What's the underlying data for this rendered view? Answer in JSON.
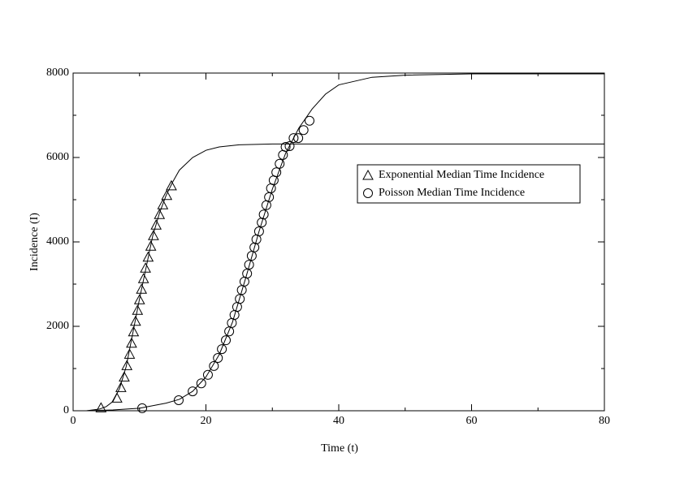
{
  "chart_data": {
    "type": "scatter",
    "xlabel": "Time (t)",
    "ylabel": "Incidence (I)",
    "xlim": [
      0,
      80
    ],
    "xticks": [
      0,
      20,
      40,
      60,
      80
    ],
    "xminorticks": [
      10,
      30,
      50,
      70
    ],
    "ylim": [
      0,
      8000
    ],
    "yticks": [
      0,
      2000,
      4000,
      6000,
      8000
    ],
    "yminorticks": [
      1000,
      3000,
      5000,
      7000
    ],
    "color": "#000000",
    "series": [
      {
        "name": "Exponential Median Time Incidence",
        "marker": "triangle",
        "x": [
          4.2,
          6.6,
          7.2,
          7.7,
          8.1,
          8.5,
          8.8,
          9.1,
          9.4,
          9.7,
          10.0,
          10.3,
          10.6,
          10.9,
          11.3,
          11.7,
          12.1,
          12.5,
          13.0,
          13.5,
          14.1,
          14.8
        ],
        "values": [
          70,
          300,
          550,
          800,
          1070,
          1340,
          1600,
          1870,
          2120,
          2380,
          2630,
          2880,
          3130,
          3380,
          3640,
          3900,
          4150,
          4400,
          4650,
          4880,
          5100,
          5330
        ],
        "curve": {
          "x": [
            2,
            4,
            5,
            6,
            7,
            8,
            9,
            10,
            11,
            12,
            13,
            14,
            15,
            16,
            18,
            20,
            22,
            25,
            30,
            80
          ],
          "values": [
            0,
            40,
            100,
            220,
            530,
            1050,
            1850,
            2650,
            3400,
            4150,
            4680,
            5100,
            5420,
            5700,
            6000,
            6170,
            6250,
            6300,
            6320,
            6320
          ]
        }
      },
      {
        "name": "Poisson Median Time Incidence",
        "marker": "circle",
        "x": [
          10.4,
          15.9,
          18.0,
          19.3,
          20.3,
          21.2,
          21.8,
          22.4,
          23.0,
          23.5,
          23.9,
          24.3,
          24.7,
          25.1,
          25.4,
          25.8,
          26.2,
          26.5,
          26.9,
          27.3,
          27.6,
          28.0,
          28.4,
          28.7,
          29.1,
          29.5,
          29.8,
          30.2,
          30.6,
          31.1,
          31.6,
          32.0,
          32.6,
          33.2,
          33.9,
          34.7,
          35.6
        ],
        "values": [
          60,
          250,
          460,
          650,
          850,
          1060,
          1250,
          1460,
          1670,
          1880,
          2080,
          2270,
          2460,
          2650,
          2860,
          3060,
          3250,
          3460,
          3670,
          3870,
          4060,
          4250,
          4460,
          4650,
          4870,
          5060,
          5270,
          5460,
          5650,
          5850,
          6060,
          6250,
          6270,
          6460,
          6460,
          6650,
          6870
        ],
        "curve": {
          "x": [
            2,
            6,
            10,
            14,
            16,
            18,
            20,
            22,
            24,
            26,
            28,
            30,
            32,
            34,
            36,
            38,
            40,
            45,
            50,
            60,
            80
          ],
          "values": [
            0,
            20,
            60,
            180,
            270,
            460,
            800,
            1330,
            2100,
            3150,
            4250,
            5250,
            6100,
            6700,
            7150,
            7500,
            7720,
            7900,
            7950,
            7980,
            7980
          ]
        }
      }
    ]
  }
}
